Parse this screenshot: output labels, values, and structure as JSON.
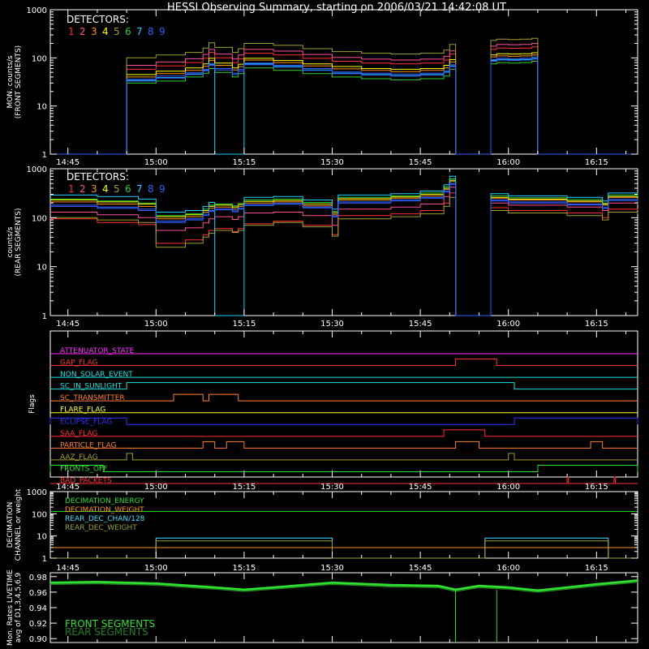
{
  "title": "HESSI Observing Summary, starting on 2006/03/21 14:42:08 UT",
  "colors": {
    "det": [
      "#ff3030",
      "#ff50a0",
      "#ff9020",
      "#ffff00",
      "#a0a030",
      "#30d030",
      "#20d0ff",
      "#3060ff",
      "#3060ff"
    ],
    "flag_magenta": "#ff30ff",
    "flag_red": "#ff3030",
    "flag_cyan": "#20e0e0",
    "flag_yellow": "#ffff30",
    "flag_orange": "#ff8030",
    "flag_blue": "#3030ff",
    "flag_olive": "#a0a030",
    "flag_green": "#30e030",
    "dec_green": "#30e030",
    "dec_orange": "#ff9020",
    "dec_cyan": "#40e0ff",
    "dec_olive": "#a0a030",
    "live_front": "#30e030",
    "live_rear": "#208020"
  },
  "detectors_label": "DETECTORS:",
  "detector_numbers": [
    "1",
    "2",
    "3",
    "4",
    "5",
    "6",
    "7",
    "8",
    "9"
  ],
  "time_ticks": [
    "14:45",
    "15:00",
    "15:15",
    "15:30",
    "15:45",
    "16:00",
    "16:15"
  ],
  "chart_data": [
    {
      "type": "line",
      "name": "front",
      "ylabel": "MON. counts/s (FRONT SEGMENTS)",
      "ylabel_lines": [
        "MON. counts/s",
        "(FRONT SEGMENTS)"
      ],
      "ylim": [
        1,
        1000
      ],
      "yscale": "log",
      "yticks": [
        "1",
        "10",
        "100",
        "1000"
      ],
      "xlim": [
        "14:42",
        "16:22"
      ],
      "x": [
        "14:42",
        "14:53",
        "14:55",
        "15:00",
        "15:05",
        "15:08",
        "15:09",
        "15:10",
        "15:13",
        "15:14",
        "15:15",
        "15:20",
        "15:25",
        "15:30",
        "15:35",
        "15:40",
        "15:45",
        "15:49",
        "15:50",
        "15:51",
        "15:52",
        "15:56",
        "15:57",
        "15:58",
        "16:00",
        "16:02",
        "16:04",
        "16:05",
        "16:22"
      ],
      "series": [
        {
          "values": [
            1,
            1,
            58,
            68,
            80,
            98,
            130,
            100,
            80,
            96,
            125,
            115,
            98,
            85,
            78,
            75,
            78,
            90,
            120,
            1,
            1,
            1,
            150,
            160,
            158,
            160,
            170,
            1,
            1
          ]
        },
        {
          "values": [
            1,
            1,
            70,
            82,
            96,
            118,
            150,
            120,
            95,
            115,
            150,
            138,
            118,
            102,
            94,
            90,
            94,
            108,
            140,
            1,
            1,
            1,
            175,
            190,
            188,
            190,
            200,
            1,
            1
          ]
        },
        {
          "values": [
            1,
            1,
            40,
            47,
            55,
            67,
            88,
            70,
            56,
            66,
            90,
            80,
            68,
            59,
            55,
            52,
            55,
            62,
            82,
            1,
            1,
            1,
            105,
            110,
            108,
            110,
            115,
            1,
            1
          ]
        },
        {
          "values": [
            1,
            1,
            45,
            53,
            62,
            75,
            98,
            78,
            62,
            74,
            98,
            88,
            75,
            66,
            60,
            58,
            60,
            70,
            92,
            1,
            1,
            1,
            115,
            122,
            120,
            122,
            128,
            1,
            1
          ]
        },
        {
          "values": [
            1,
            1,
            100,
            115,
            130,
            160,
            205,
            165,
            130,
            155,
            200,
            182,
            155,
            135,
            125,
            120,
            125,
            145,
            190,
            1,
            1,
            1,
            230,
            245,
            240,
            245,
            255,
            1,
            1
          ]
        },
        {
          "values": [
            1,
            1,
            30,
            33,
            40,
            48,
            60,
            50,
            40,
            47,
            62,
            55,
            47,
            40,
            37,
            35,
            37,
            42,
            58,
            1,
            1,
            1,
            75,
            80,
            78,
            80,
            85,
            1,
            1
          ]
        },
        {
          "values": [
            1,
            1,
            34,
            39,
            46,
            55,
            72,
            1,
            1,
            1,
            75,
            66,
            56,
            48,
            45,
            43,
            45,
            51,
            68,
            1,
            1,
            1,
            88,
            93,
            91,
            93,
            98,
            1,
            1
          ]
        },
        {
          "values": [
            1,
            1,
            36,
            42,
            49,
            58,
            76,
            60,
            48,
            57,
            78,
            70,
            60,
            51,
            48,
            46,
            48,
            54,
            72,
            1,
            1,
            1,
            92,
            98,
            96,
            98,
            104,
            1,
            1
          ]
        },
        {
          "values": [
            1,
            1,
            33,
            38,
            45,
            54,
            70,
            56,
            45,
            53,
            72,
            64,
            55,
            47,
            44,
            42,
            44,
            50,
            66,
            1,
            1,
            1,
            85,
            90,
            88,
            90,
            95,
            1,
            1
          ]
        }
      ]
    },
    {
      "type": "line",
      "name": "rear",
      "ylabel": "counts/s (REAR SEGMENTS)",
      "ylabel_lines": [
        "counts/s",
        "(REAR SEGMENTS)"
      ],
      "ylim": [
        1,
        1000
      ],
      "yscale": "log",
      "yticks": [
        "1",
        "10",
        "100",
        "1000"
      ],
      "xlim": [
        "14:42",
        "16:22"
      ],
      "x": [
        "14:42",
        "14:50",
        "14:57",
        "15:00",
        "15:05",
        "15:08",
        "15:09",
        "15:10",
        "15:13",
        "15:14",
        "15:15",
        "15:20",
        "15:25",
        "15:30",
        "15:31",
        "15:40",
        "15:45",
        "15:49",
        "15:50",
        "15:51",
        "15:52",
        "15:56",
        "15:57",
        "16:00",
        "16:10",
        "16:16",
        "16:17",
        "16:22"
      ],
      "series": [
        {
          "values": [
            95,
            80,
            72,
            30,
            35,
            45,
            55,
            60,
            52,
            60,
            75,
            85,
            70,
            45,
            110,
            120,
            140,
            200,
            320,
            1,
            1,
            1,
            160,
            140,
            125,
            100,
            150,
            140
          ]
        },
        {
          "values": [
            130,
            115,
            100,
            55,
            62,
            78,
            95,
            105,
            92,
            105,
            125,
            130,
            110,
            70,
            150,
            165,
            190,
            270,
            420,
            1,
            1,
            1,
            200,
            180,
            165,
            140,
            200,
            185
          ]
        },
        {
          "values": [
            210,
            190,
            170,
            95,
            105,
            130,
            155,
            165,
            150,
            170,
            200,
            210,
            175,
            115,
            230,
            250,
            280,
            380,
            550,
            1,
            1,
            1,
            250,
            230,
            210,
            180,
            260,
            240
          ]
        },
        {
          "values": [
            230,
            210,
            190,
            105,
            115,
            140,
            170,
            180,
            165,
            185,
            215,
            225,
            190,
            125,
            245,
            265,
            300,
            400,
            580,
            1,
            1,
            1,
            260,
            240,
            220,
            190,
            270,
            250
          ]
        },
        {
          "values": [
            100,
            90,
            80,
            25,
            30,
            40,
            48,
            55,
            50,
            55,
            70,
            80,
            65,
            42,
            95,
            105,
            120,
            170,
            260,
            1,
            1,
            1,
            140,
            125,
            110,
            90,
            130,
            120
          ]
        },
        {
          "values": [
            240,
            220,
            200,
            110,
            120,
            150,
            180,
            190,
            175,
            195,
            230,
            240,
            205,
            135,
            260,
            280,
            320,
            430,
            620,
            1,
            1,
            1,
            280,
            255,
            235,
            200,
            290,
            270
          ]
        },
        {
          "values": [
            290,
            270,
            240,
            130,
            140,
            170,
            205,
            1,
            1,
            1,
            260,
            270,
            230,
            150,
            290,
            310,
            350,
            470,
            700,
            1,
            1,
            1,
            310,
            280,
            260,
            220,
            320,
            300
          ]
        },
        {
          "values": [
            180,
            165,
            150,
            85,
            95,
            118,
            140,
            150,
            138,
            155,
            185,
            195,
            165,
            108,
            210,
            230,
            260,
            350,
            500,
            1,
            1,
            1,
            230,
            210,
            190,
            160,
            235,
            220
          ]
        },
        {
          "values": [
            170,
            155,
            140,
            80,
            90,
            112,
            135,
            145,
            132,
            150,
            178,
            188,
            158,
            104,
            200,
            220,
            250,
            335,
            480,
            1,
            1,
            1,
            220,
            200,
            182,
            155,
            225,
            210
          ]
        }
      ]
    },
    {
      "type": "line",
      "name": "flags",
      "ylabel": "Flags",
      "xlim": [
        "14:42",
        "16:22"
      ],
      "flags": [
        {
          "label": "ATTENUATOR_STATE",
          "color": "#ff30ff",
          "high": []
        },
        {
          "label": "GAP_FLAG",
          "color": "#ff3030",
          "high": [
            [
              "15:51",
              "15:58"
            ]
          ]
        },
        {
          "label": "NON_SOLAR_EVENT",
          "color": "#20e0e0",
          "high": []
        },
        {
          "label": "SC_IN_SUNLIGHT",
          "color": "#20e0e0",
          "high": [
            [
              "14:55",
              "16:01"
            ]
          ]
        },
        {
          "label": "SC_TRANSMITTER",
          "color": "#ff8030",
          "high": [
            [
              "15:03",
              "15:08"
            ],
            [
              "15:09",
              "15:14"
            ]
          ]
        },
        {
          "label": "FLARE_FLAG",
          "color": "#ffff30",
          "high": []
        },
        {
          "label": "ECLIPSE_FLAG",
          "color": "#3030ff",
          "high": [
            [
              "14:42",
              "14:55"
            ],
            [
              "16:01",
              "16:22"
            ]
          ]
        },
        {
          "label": "SAA_FLAG",
          "color": "#ff3030",
          "high": [
            [
              "15:49",
              "15:56"
            ]
          ]
        },
        {
          "label": "PARTICLE_FLAG",
          "color": "#ff8030",
          "high": [
            [
              "15:08",
              "15:10"
            ],
            [
              "15:12",
              "15:15"
            ],
            [
              "15:51",
              "15:55"
            ],
            [
              "16:14",
              "16:16"
            ]
          ]
        },
        {
          "label": "AAZ_FLAG",
          "color": "#a0a030",
          "high": [
            [
              "14:55",
              "14:56"
            ],
            [
              "16:00",
              "16:01"
            ]
          ]
        },
        {
          "label": "FRONTS_OFF",
          "color": "#30e030",
          "high": [
            [
              "14:42",
              "14:51"
            ],
            [
              "16:05",
              "16:22"
            ]
          ]
        },
        {
          "label": "BAD_PACKETS",
          "color": "#ff3030",
          "high": [
            [
              "16:10",
              "16:10"
            ],
            [
              "16:18",
              "16:18"
            ]
          ]
        }
      ]
    },
    {
      "type": "line",
      "name": "decimation",
      "ylabel": "DECIMATION CHANNEL or weight",
      "ylabel_lines": [
        "DECIMATION",
        "CHANNEL or weight"
      ],
      "ylim": [
        1,
        1000
      ],
      "yscale": "log",
      "yticks": [
        "1",
        "10",
        "100",
        "1000"
      ],
      "xlim": [
        "14:42",
        "16:22"
      ],
      "series": [
        {
          "name": "DECIMATION_ENERGY",
          "color": "#30e030",
          "x": [
            "14:42",
            "16:22"
          ],
          "values": [
            128,
            128
          ]
        },
        {
          "name": "DECIMATION_WEIGHT",
          "color": "#ff9020",
          "x": [
            "14:42",
            "16:22"
          ],
          "values": [
            3,
            3
          ]
        },
        {
          "name": "REAR_DEC_CHAN/128",
          "color": "#40e0ff",
          "x": [
            "14:42",
            "15:00",
            "15:00",
            "15:30",
            "15:30",
            "15:56",
            "15:56",
            "16:17",
            "16:17",
            "16:22"
          ],
          "values": [
            1,
            1,
            8,
            8,
            1,
            1,
            8,
            8,
            1,
            1
          ]
        },
        {
          "name": "REAR_DEC_WEIGHT",
          "color": "#a0a030",
          "x": [
            "14:42",
            "15:00",
            "15:00",
            "15:30",
            "15:30",
            "15:56",
            "15:56",
            "16:17",
            "16:17",
            "16:22"
          ],
          "values": [
            1,
            1,
            6,
            6,
            1,
            1,
            6,
            6,
            1,
            1
          ]
        }
      ]
    },
    {
      "type": "line",
      "name": "livetime",
      "ylabel": "Mon. Rates LIVETIME avg of D1,3,4,5,6,9",
      "ylabel_lines": [
        "Mon. Rates LIVETIME",
        "avg of D1,3,4,5,6,9"
      ],
      "ylim": [
        0.895,
        0.985
      ],
      "yticks": [
        "0.90",
        "0.92",
        "0.94",
        "0.96",
        "0.98"
      ],
      "xlim": [
        "14:42",
        "16:22"
      ],
      "series": [
        {
          "name": "FRONT SEGMENTS",
          "color": "#30e030",
          "x": [
            "14:42",
            "14:50",
            "15:00",
            "15:10",
            "15:15",
            "15:20",
            "15:30",
            "15:40",
            "15:48",
            "15:51",
            "15:55",
            "16:00",
            "16:05",
            "16:10",
            "16:15",
            "16:22"
          ],
          "values": [
            0.972,
            0.973,
            0.971,
            0.966,
            0.963,
            0.966,
            0.972,
            0.969,
            0.968,
            0.963,
            0.968,
            0.966,
            0.962,
            0.966,
            0.97,
            0.975
          ]
        },
        {
          "name": "REAR SEGMENTS",
          "color": "#208020",
          "x": [
            "14:42",
            "14:50",
            "15:00",
            "15:10",
            "15:15",
            "15:20",
            "15:30",
            "15:40",
            "15:48",
            "15:51",
            "15:55",
            "16:00",
            "16:05",
            "16:10",
            "16:15",
            "16:22"
          ],
          "values": [
            0.97,
            0.971,
            0.969,
            0.964,
            0.961,
            0.964,
            0.97,
            0.967,
            0.966,
            0.961,
            0.966,
            0.964,
            0.96,
            0.964,
            0.968,
            0.973
          ]
        }
      ]
    }
  ]
}
